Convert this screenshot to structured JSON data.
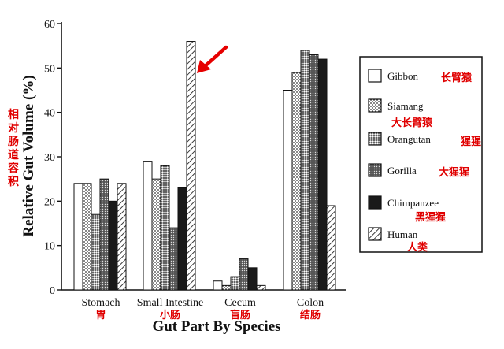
{
  "chart_data": {
    "type": "bar",
    "title": "",
    "xlabel": "Gut Part By Species",
    "ylabel": "Relative Gut Volume (%)",
    "ylabel_cn": "相对肠道容积",
    "ylim": [
      0,
      60
    ],
    "yticks": [
      0,
      10,
      20,
      30,
      40,
      50,
      60
    ],
    "grid": false,
    "legend_position": "right",
    "categories": [
      "Stomach",
      "Small Intestine",
      "Cecum",
      "Colon"
    ],
    "categories_cn": [
      "胃",
      "小肠",
      "盲肠",
      "结肠"
    ],
    "series": [
      {
        "name": "Gibbon",
        "name_cn": "长臂猿",
        "pattern": "white",
        "values": [
          24,
          29,
          2,
          45
        ]
      },
      {
        "name": "Siamang",
        "name_cn": "大长臂猿",
        "pattern": "dots",
        "values": [
          24,
          25,
          1,
          49
        ]
      },
      {
        "name": "Orangutan",
        "name_cn": "猩猩",
        "pattern": "dense-dots",
        "values": [
          17,
          28,
          3,
          54
        ]
      },
      {
        "name": "Gorilla",
        "name_cn": "大猩猩",
        "pattern": "stipple",
        "values": [
          25,
          14,
          7,
          53
        ]
      },
      {
        "name": "Chimpanzee",
        "name_cn": "黑猩猩",
        "pattern": "black",
        "values": [
          20,
          23,
          5,
          52
        ]
      },
      {
        "name": "Human",
        "name_cn": "人类",
        "pattern": "hatch",
        "values": [
          24,
          56,
          1,
          19
        ]
      }
    ],
    "annotation": "red-arrow-pointing-to-human-small-intestine"
  },
  "colors": {
    "axis": "#111111",
    "chinese_label": "#e00000",
    "arrow": "#e60000"
  }
}
